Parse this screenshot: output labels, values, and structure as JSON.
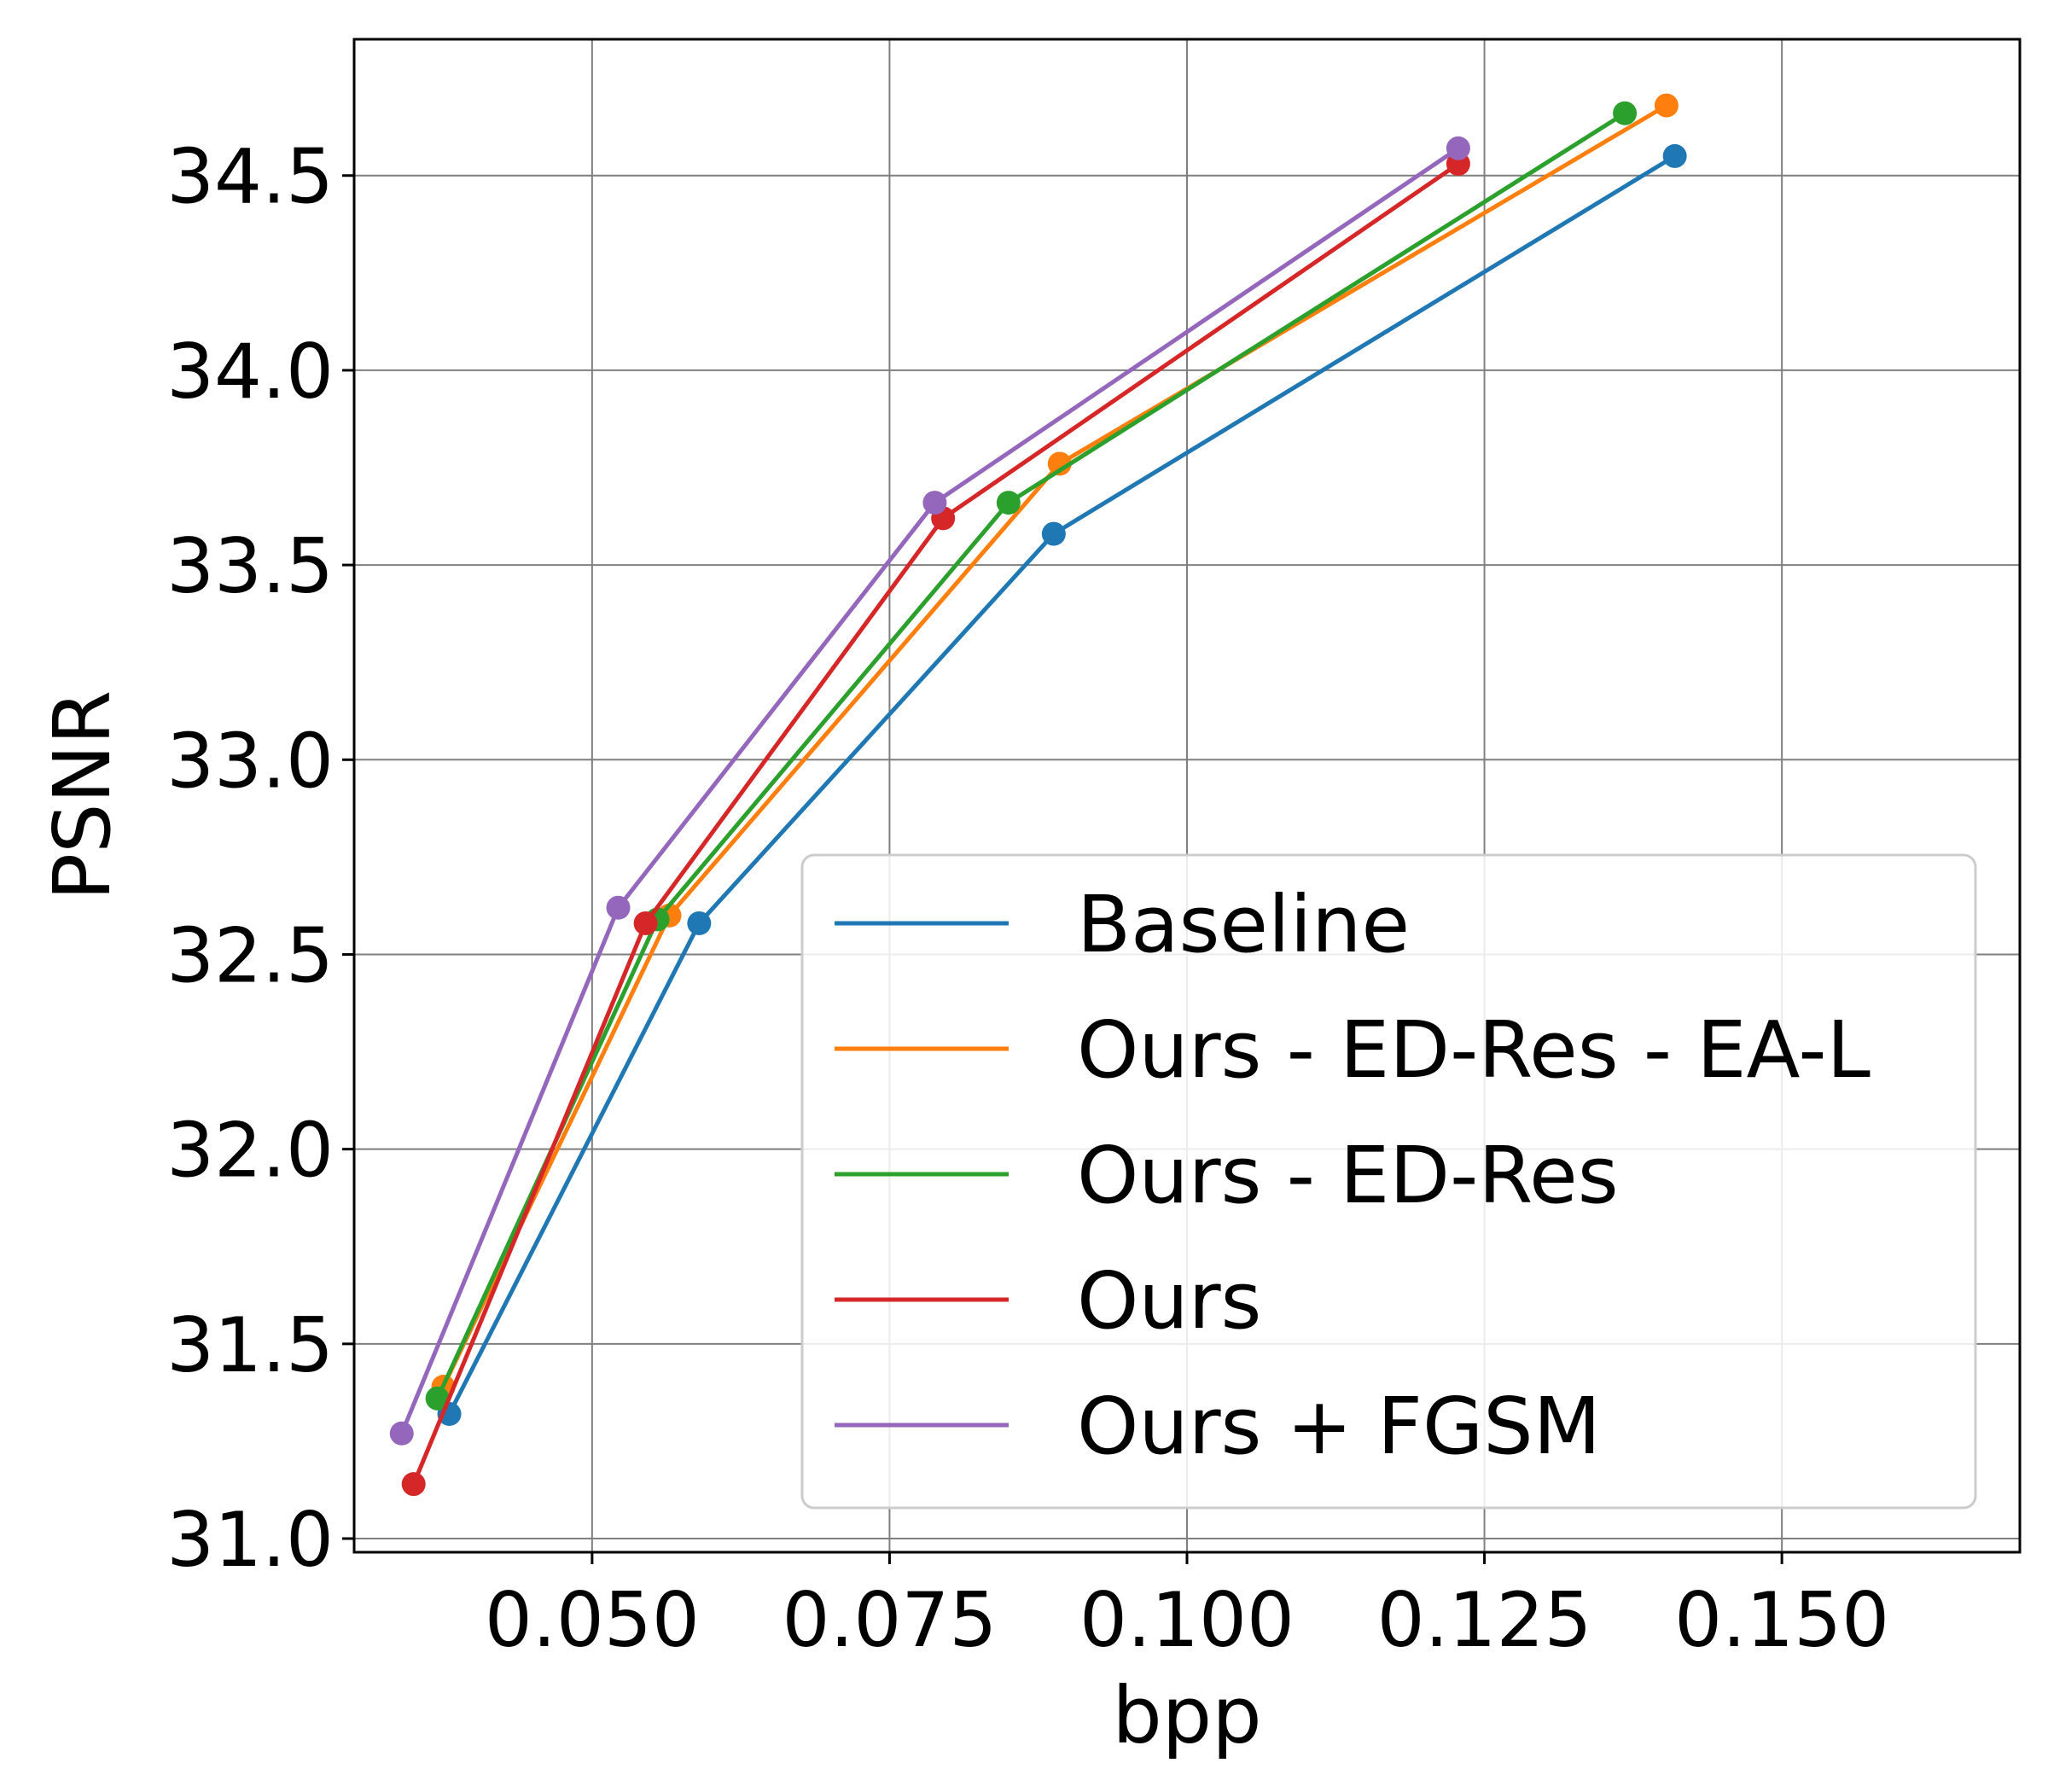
{
  "chart_data": {
    "type": "line",
    "title": "",
    "xlabel": "bpp",
    "ylabel": "PSNR",
    "xlim": [
      0.03,
      0.17
    ],
    "ylim": [
      30.965,
      34.85
    ],
    "xticks": [
      0.05,
      0.075,
      0.1,
      0.125,
      0.15
    ],
    "xtick_labels": [
      "0.050",
      "0.075",
      "0.100",
      "0.125",
      "0.150"
    ],
    "yticks": [
      31.0,
      31.5,
      32.0,
      32.5,
      33.0,
      33.5,
      34.0,
      34.5
    ],
    "ytick_labels": [
      "31.0",
      "31.5",
      "32.0",
      "32.5",
      "33.0",
      "33.5",
      "34.0",
      "34.5"
    ],
    "grid": true,
    "legend_position": "lower-right",
    "series": [
      {
        "name": "Baseline",
        "color": "#1f77b4",
        "x": [
          0.038,
          0.059,
          0.0888,
          0.141
        ],
        "y": [
          31.32,
          32.58,
          33.58,
          34.55
        ]
      },
      {
        "name": "Ours - ED-Res - EA-L",
        "color": "#ff7f0e",
        "x": [
          0.0375,
          0.0565,
          0.0893,
          0.1403
        ],
        "y": [
          31.39,
          32.6,
          33.76,
          34.68
        ]
      },
      {
        "name": "Ours - ED-Res",
        "color": "#2ca02c",
        "x": [
          0.037,
          0.0555,
          0.085,
          0.1368
        ],
        "y": [
          31.36,
          32.59,
          33.66,
          34.66
        ]
      },
      {
        "name": "Ours",
        "color": "#d62728",
        "x": [
          0.035,
          0.0545,
          0.0795,
          0.1228
        ],
        "y": [
          31.14,
          32.58,
          33.62,
          34.53
        ]
      },
      {
        "name": "Ours + FGSM",
        "color": "#9467bd",
        "x": [
          0.034,
          0.0522,
          0.0788,
          0.1228
        ],
        "y": [
          31.27,
          32.62,
          33.66,
          34.57
        ]
      }
    ]
  }
}
